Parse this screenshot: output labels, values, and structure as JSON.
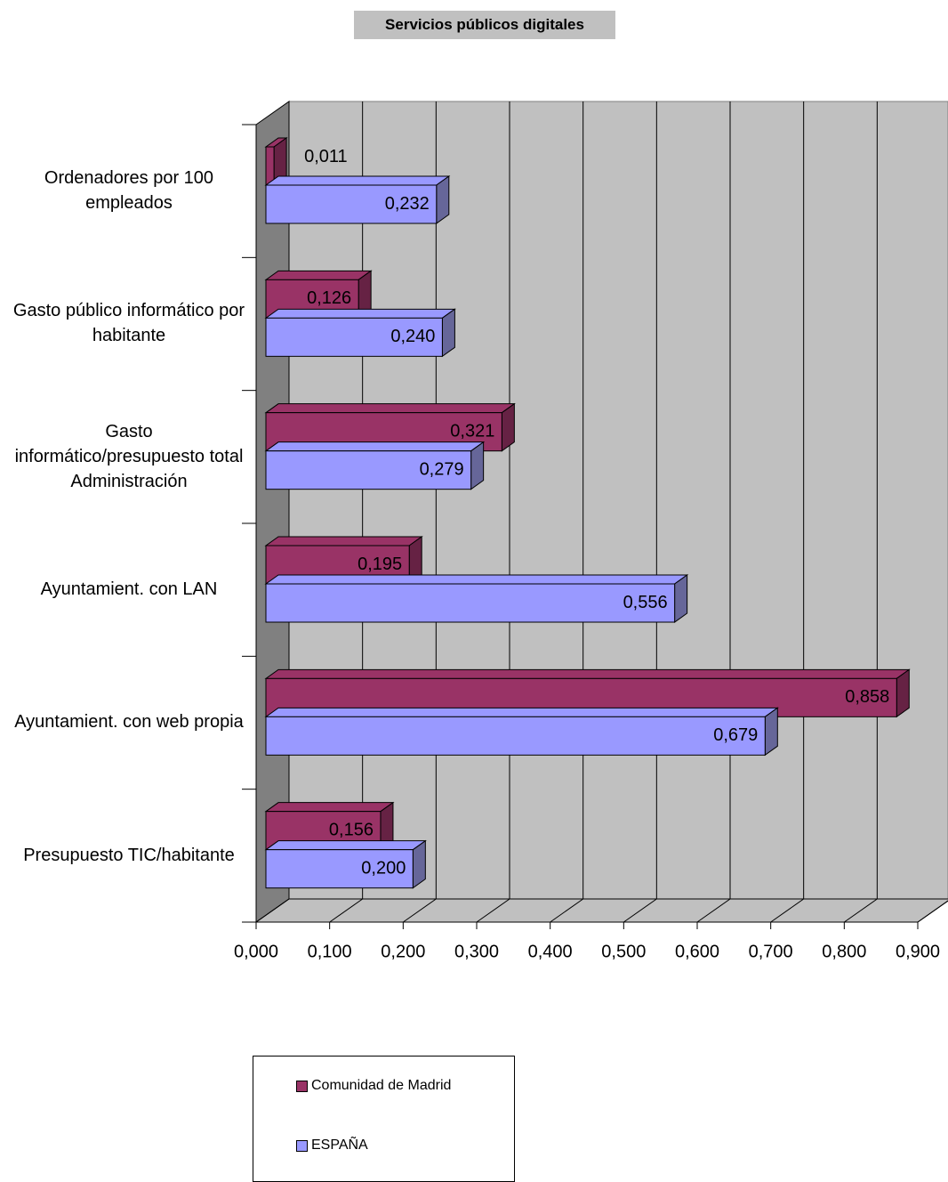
{
  "chart_data": {
    "type": "bar3d-horizontal",
    "title": "Servicios públicos digitales",
    "categories": [
      "Ordenadores por 100 empleados",
      "Gasto público informático por habitante",
      "Gasto informático/presupuesto total Administración",
      "Ayuntamient. con LAN",
      "Ayuntamient. con web propia",
      "Presupuesto TIC/habitante"
    ],
    "series": [
      {
        "name": "Comunidad de Madrid",
        "color": "#993366",
        "values": [
          0.011,
          0.126,
          0.321,
          0.195,
          0.858,
          0.156
        ],
        "value_labels": [
          "0,011",
          "0,126",
          "0,321",
          "0,195",
          "0,858",
          "0,156"
        ]
      },
      {
        "name": "ESPAÑA",
        "color": "#9999ff",
        "values": [
          0.232,
          0.24,
          0.279,
          0.556,
          0.679,
          0.2
        ],
        "value_labels": [
          "0,232",
          "0,240",
          "0,279",
          "0,556",
          "0,679",
          "0,200"
        ]
      }
    ],
    "xlim": [
      0,
      0.9
    ],
    "xticks": [
      {
        "value": 0,
        "label": "0,000"
      },
      {
        "value": 0.1,
        "label": "0,100"
      },
      {
        "value": 0.2,
        "label": "0,200"
      },
      {
        "value": 0.3,
        "label": "0,300"
      },
      {
        "value": 0.4,
        "label": "0,400"
      },
      {
        "value": 0.5,
        "label": "0,500"
      },
      {
        "value": 0.6,
        "label": "0,600"
      },
      {
        "value": 0.7,
        "label": "0,700"
      },
      {
        "value": 0.8,
        "label": "0,800"
      },
      {
        "value": 0.9,
        "label": "0,900"
      }
    ],
    "grid": true
  }
}
